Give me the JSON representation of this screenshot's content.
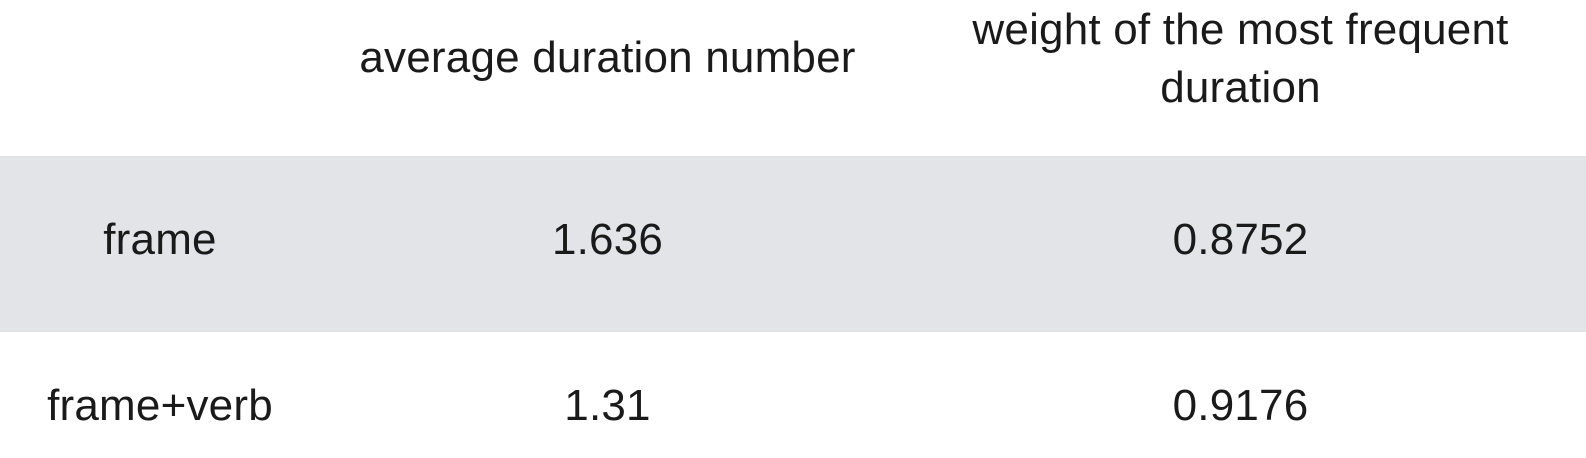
{
  "chart_data": {
    "type": "table",
    "columns": [
      "",
      "average duration number",
      "weight of the most frequent duration"
    ],
    "rows": [
      {
        "label": "frame",
        "values": [
          "1.636",
          "0.8752"
        ]
      },
      {
        "label": "frame+verb",
        "values": [
          "1.31",
          "0.9176"
        ]
      }
    ]
  },
  "colors": {
    "header_bg": "#ffffff",
    "striped_row_bg": "#e3e4e8",
    "text": "#1a1a1a"
  }
}
